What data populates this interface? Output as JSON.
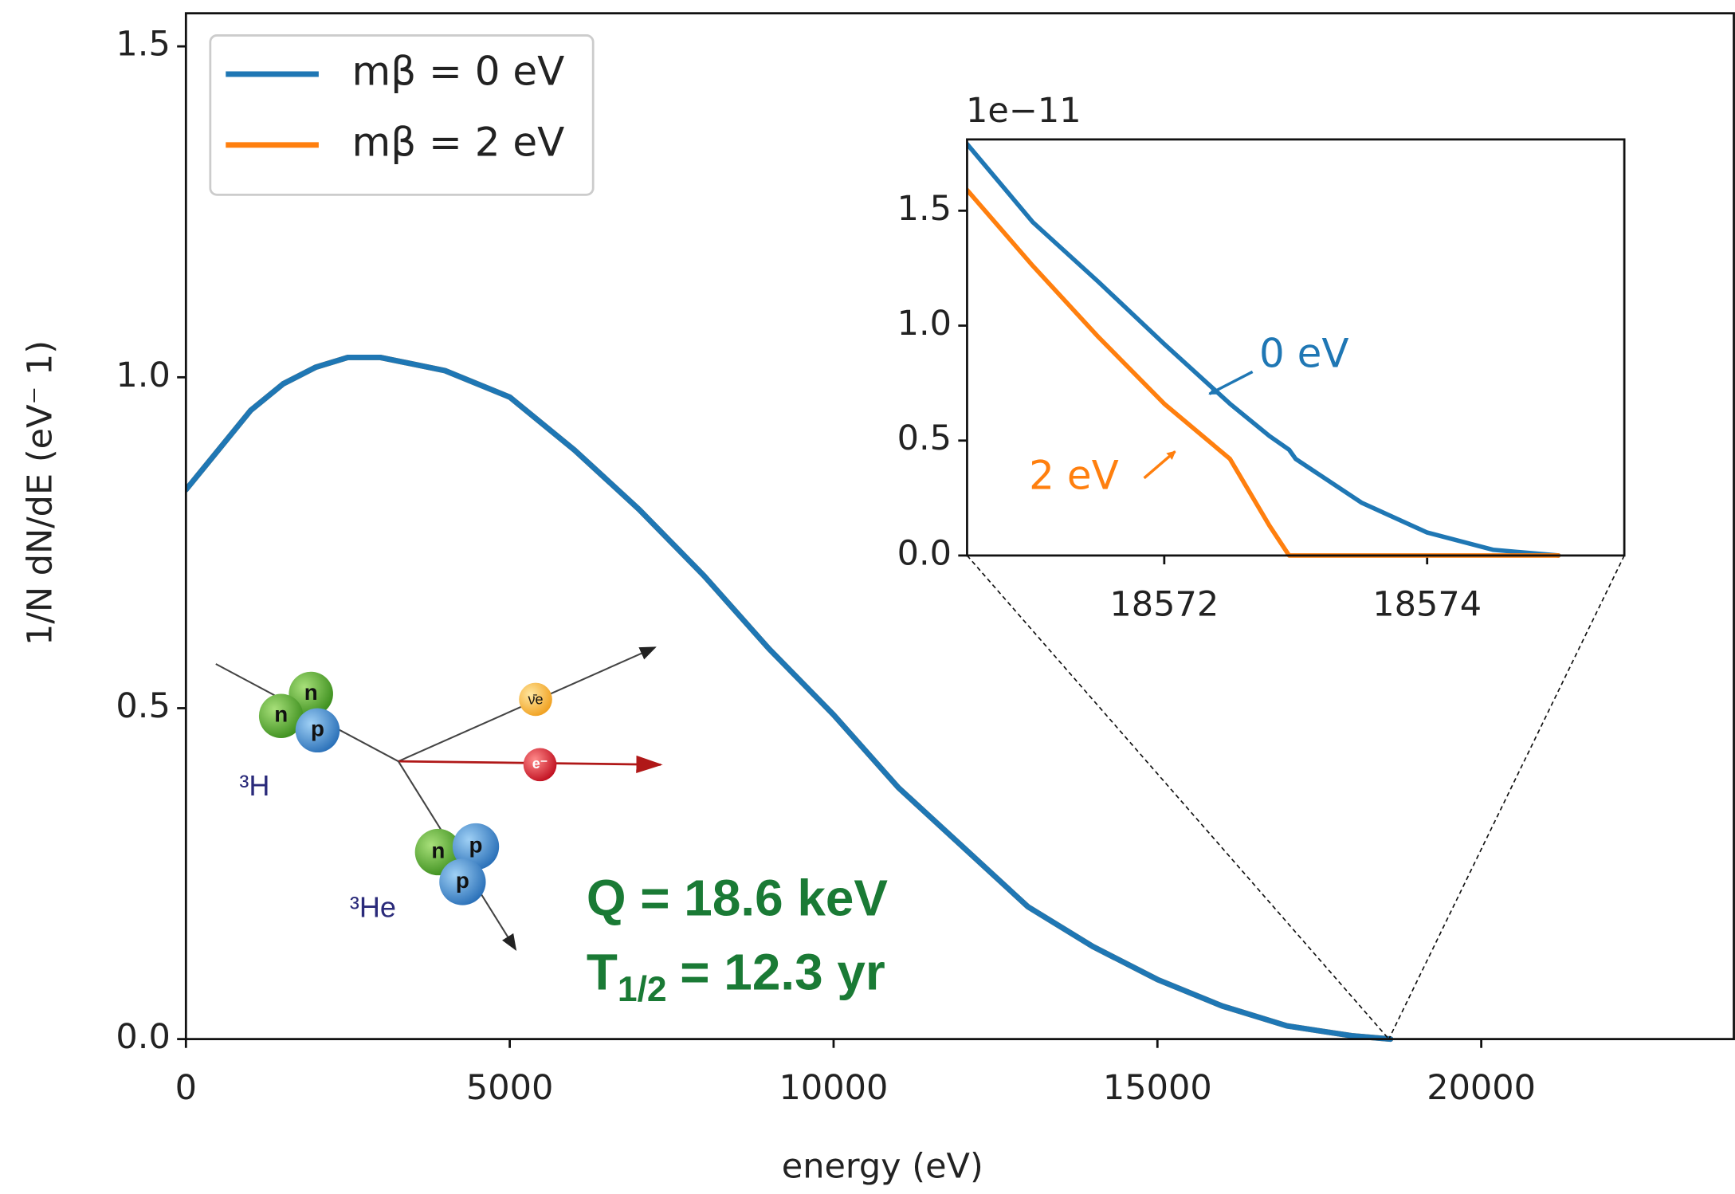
{
  "chart_data": [
    {
      "type": "line",
      "xlabel": "energy (eV)",
      "ylabel": "1/N dN/dE (eV⁻ 1)",
      "x": [
        0,
        500,
        1000,
        1500,
        2000,
        2500,
        3000,
        4000,
        5000,
        6000,
        7000,
        8000,
        9000,
        10000,
        11000,
        12000,
        13000,
        14000,
        15000,
        16000,
        17000,
        18000,
        18600
      ],
      "series": [
        {
          "name": "mβ = 2 eV",
          "color": "#ff7f0e",
          "values": [
            0.83,
            0.89,
            0.95,
            0.99,
            1.015,
            1.03,
            1.03,
            1.01,
            0.97,
            0.89,
            0.8,
            0.7,
            0.59,
            0.49,
            0.38,
            0.29,
            0.2,
            0.14,
            0.09,
            0.05,
            0.02,
            0.005,
            0
          ]
        },
        {
          "name": "mβ = 0 eV",
          "color": "#1f77b4",
          "values": [
            0.83,
            0.89,
            0.95,
            0.99,
            1.015,
            1.03,
            1.03,
            1.01,
            0.97,
            0.89,
            0.8,
            0.7,
            0.59,
            0.49,
            0.38,
            0.29,
            0.2,
            0.14,
            0.09,
            0.05,
            0.02,
            0.005,
            0
          ]
        }
      ],
      "xlim": [
        0,
        23900
      ],
      "ylim": [
        0,
        1.55
      ],
      "xticks": [
        0,
        5000,
        10000,
        15000,
        20000
      ],
      "yticks": [
        {
          "value": 0,
          "label": "0.0"
        },
        0.5,
        {
          "value": 1,
          "label": "1.0"
        },
        1.5
      ],
      "legend": "upper left",
      "annotations": [
        {
          "text": "Q = 18.6 keV",
          "color": "#1a7a35"
        },
        {
          "parts": [
            "T",
            "1/2",
            "= 12.3 yr"
          ],
          "color": "#1a7a35"
        }
      ]
    },
    {
      "type": "line",
      "offset_label": "1e−11",
      "x": [
        18570.5,
        18571,
        18571.5,
        18572,
        18572.5,
        18572.8,
        18572.95,
        18573,
        18573.5,
        18574,
        18574.5,
        18575
      ],
      "series": [
        {
          "color": "#1f77b4",
          "values": [
            1.79,
            1.45,
            1.19,
            0.92,
            0.66,
            0.52,
            0.46,
            0.42,
            0.23,
            0.1,
            0.025,
            0
          ]
        },
        {
          "color": "#ff7f0e",
          "values": [
            1.59,
            1.26,
            0.95,
            0.66,
            0.42,
            0.13,
            0,
            0,
            0,
            0,
            0,
            0
          ]
        }
      ],
      "xlim": [
        18570.5,
        18575.5
      ],
      "ylim": [
        0,
        1.81
      ],
      "xticks": [
        18572,
        18574
      ],
      "yticks": [
        {
          "value": 0,
          "label": "0.0"
        },
        0.5,
        {
          "value": 1,
          "label": "1.0"
        },
        1.5
      ],
      "annotations": [
        {
          "text": "0 eV",
          "color": "#1f77b4"
        },
        {
          "text": "2 eV",
          "color": "#ff7f0e"
        }
      ]
    }
  ],
  "illustration": {
    "labels": [
      "n",
      "n",
      "p",
      "³H",
      "ν̄e",
      "e⁻",
      "n",
      "p",
      "p",
      "³He"
    ]
  }
}
